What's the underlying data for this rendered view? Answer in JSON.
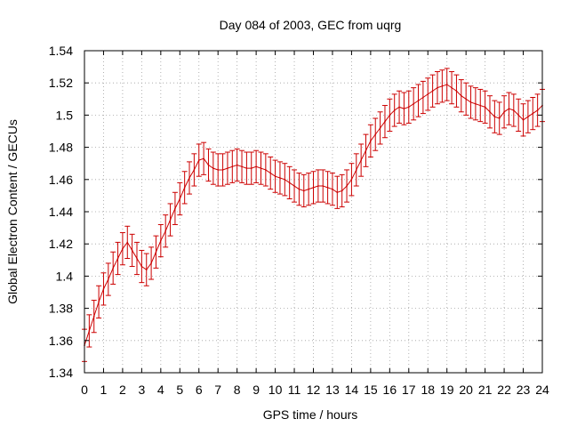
{
  "chart_data": {
    "type": "line",
    "title": "Day 084 of 2003, GEC from uqrg",
    "xlabel": "GPS time / hours",
    "ylabel": "Global Electron Content / GECUs",
    "xlim": [
      0,
      24
    ],
    "ylim": [
      1.34,
      1.54
    ],
    "grid": true,
    "x_ticks": [
      0,
      1,
      2,
      3,
      4,
      5,
      6,
      7,
      8,
      9,
      10,
      11,
      12,
      13,
      14,
      15,
      16,
      17,
      18,
      19,
      20,
      21,
      22,
      23,
      24
    ],
    "x_tick_labels": [
      "0",
      "1",
      "2",
      "3",
      "4",
      "5",
      "6",
      "7",
      "8",
      "9",
      "10",
      "11",
      "12",
      "13",
      "14",
      "15",
      "16",
      "17",
      "18",
      "19",
      "20",
      "21",
      "22",
      "23",
      "24"
    ],
    "y_ticks": [
      1.34,
      1.36,
      1.38,
      1.4,
      1.42,
      1.44,
      1.46,
      1.48,
      1.5,
      1.52,
      1.54
    ],
    "y_tick_labels": [
      "1.34",
      "1.36",
      "1.38",
      "1.4",
      "1.42",
      "1.44",
      "1.46",
      "1.48",
      "1.5",
      "1.52",
      "1.54"
    ],
    "series": [
      {
        "color": "#cc0000",
        "error": 0.01,
        "x": [
          0,
          0.25,
          0.5,
          0.75,
          1,
          1.25,
          1.5,
          1.75,
          2,
          2.25,
          2.5,
          2.75,
          3,
          3.25,
          3.5,
          3.75,
          4,
          4.25,
          4.5,
          4.75,
          5,
          5.25,
          5.5,
          5.75,
          6,
          6.25,
          6.5,
          6.75,
          7,
          7.25,
          7.5,
          7.75,
          8,
          8.25,
          8.5,
          8.75,
          9,
          9.25,
          9.5,
          9.75,
          10,
          10.25,
          10.5,
          10.75,
          11,
          11.25,
          11.5,
          11.75,
          12,
          12.25,
          12.5,
          12.75,
          13,
          13.25,
          13.5,
          13.75,
          14,
          14.25,
          14.5,
          14.75,
          15,
          15.25,
          15.5,
          15.75,
          16,
          16.25,
          16.5,
          16.75,
          17,
          17.25,
          17.5,
          17.75,
          18,
          18.25,
          18.5,
          18.75,
          19,
          19.25,
          19.5,
          19.75,
          20,
          20.25,
          20.5,
          20.75,
          21,
          21.25,
          21.5,
          21.75,
          22,
          22.25,
          22.5,
          22.75,
          23,
          23.25,
          23.5,
          23.75,
          24
        ],
        "y": [
          1.357,
          1.366,
          1.375,
          1.384,
          1.392,
          1.398,
          1.405,
          1.411,
          1.417,
          1.421,
          1.416,
          1.411,
          1.406,
          1.404,
          1.408,
          1.415,
          1.422,
          1.428,
          1.435,
          1.442,
          1.448,
          1.455,
          1.461,
          1.466,
          1.472,
          1.473,
          1.469,
          1.467,
          1.466,
          1.466,
          1.467,
          1.468,
          1.469,
          1.468,
          1.467,
          1.467,
          1.468,
          1.467,
          1.466,
          1.464,
          1.462,
          1.461,
          1.46,
          1.458,
          1.456,
          1.454,
          1.453,
          1.454,
          1.455,
          1.456,
          1.456,
          1.455,
          1.454,
          1.452,
          1.453,
          1.456,
          1.46,
          1.466,
          1.472,
          1.478,
          1.484,
          1.488,
          1.492,
          1.496,
          1.5,
          1.503,
          1.505,
          1.504,
          1.505,
          1.507,
          1.509,
          1.511,
          1.513,
          1.515,
          1.517,
          1.518,
          1.519,
          1.517,
          1.515,
          1.512,
          1.51,
          1.508,
          1.507,
          1.506,
          1.505,
          1.502,
          1.499,
          1.498,
          1.502,
          1.504,
          1.503,
          1.5,
          1.497,
          1.499,
          1.501,
          1.503,
          1.506
        ]
      }
    ]
  }
}
